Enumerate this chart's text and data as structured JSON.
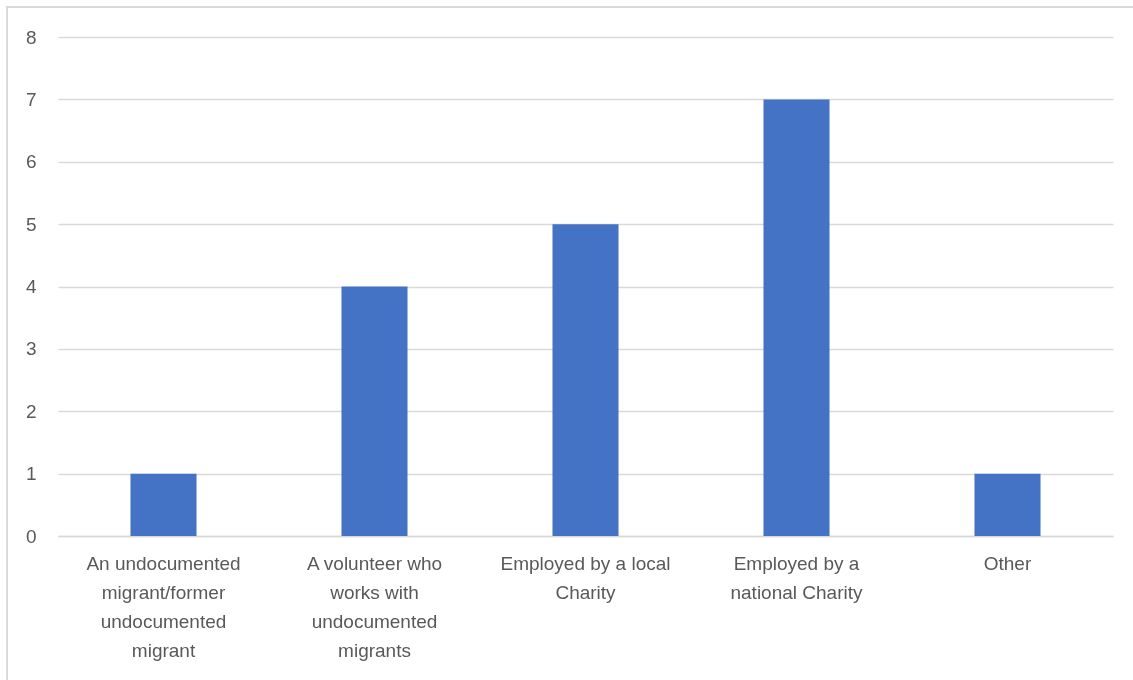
{
  "chart_data": {
    "type": "bar",
    "categories": [
      "An undocumented migrant/former undocumented migrant",
      "A volunteer who works with undocumented migrants",
      "Employed by a local Charity",
      "Employed by a national Charity",
      "Other"
    ],
    "values": [
      1,
      4,
      5,
      7,
      1
    ],
    "color": "#4472c4",
    "ylim": [
      0,
      8
    ],
    "yticks": [
      0,
      1,
      2,
      3,
      4,
      5,
      6,
      7,
      8
    ],
    "grid": "y"
  }
}
